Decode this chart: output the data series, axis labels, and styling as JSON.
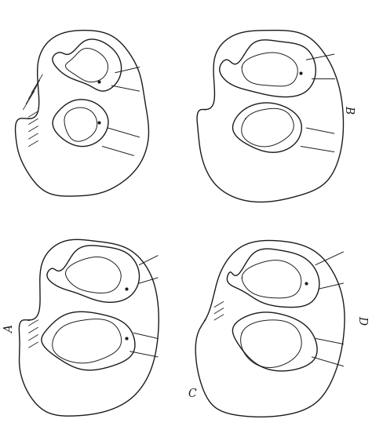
{
  "figure_width": 4.74,
  "figure_height": 5.71,
  "bg_color": "#ffffff",
  "line_color": "#1a1a1a",
  "line_width": 1.0,
  "label_A": "A",
  "label_B": "B",
  "label_C": "C",
  "label_D": "D",
  "label_fontsize": 10
}
